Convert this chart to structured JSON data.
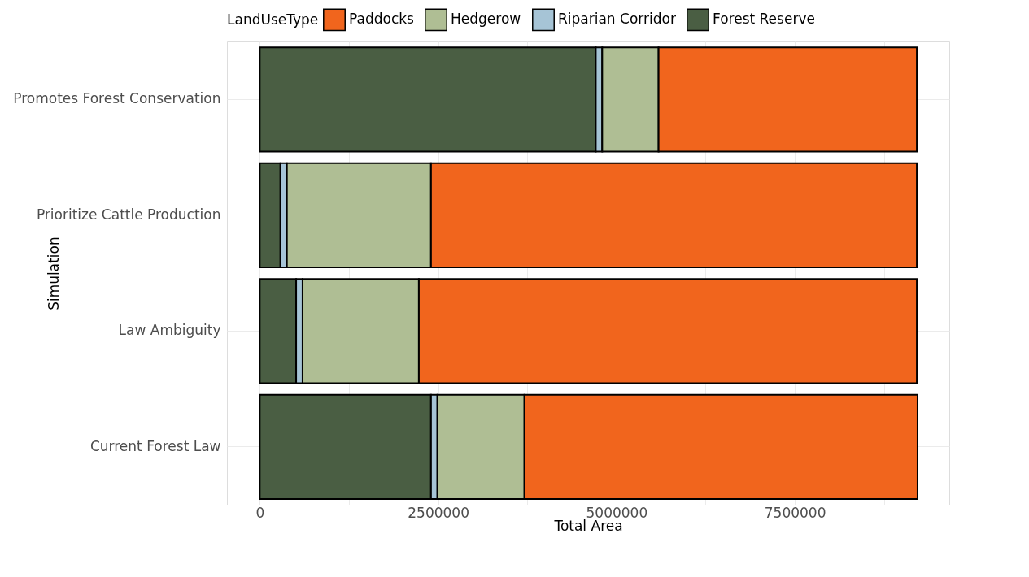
{
  "chart_data": {
    "type": "bar",
    "orientation": "horizontal",
    "stacked": true,
    "categories": [
      "Promotes Forest Conservation",
      "Prioritize Cattle Production",
      "Law Ambiguity",
      "Current Forest Law"
    ],
    "series": [
      {
        "name": "Forest Reserve",
        "color": "#4a5e43",
        "values": [
          4710000,
          290000,
          510000,
          2400000
        ]
      },
      {
        "name": "Riparian Corridor",
        "color": "#a6c4d6",
        "values": [
          90000,
          90000,
          90000,
          90000
        ]
      },
      {
        "name": "Hedgerow",
        "color": "#afbe94",
        "values": [
          790000,
          2020000,
          1630000,
          1220000
        ]
      },
      {
        "name": "Paddocks",
        "color": "#f1651d",
        "values": [
          3620000,
          6810000,
          6980000,
          5510000
        ]
      }
    ],
    "xlabel": "Total Area",
    "ylabel": "Simulation",
    "legend_title": "LandUseType",
    "legend": "top",
    "xlim": [
      -460000,
      9665000
    ],
    "xticks": [
      0,
      {
        "value": 1250000,
        "label": null
      },
      2500000,
      {
        "value": 3750000,
        "label": null
      },
      5000000,
      {
        "value": 6250000,
        "label": null
      },
      7500000,
      {
        "value": 8750000,
        "label": null
      }
    ],
    "grid": true
  }
}
